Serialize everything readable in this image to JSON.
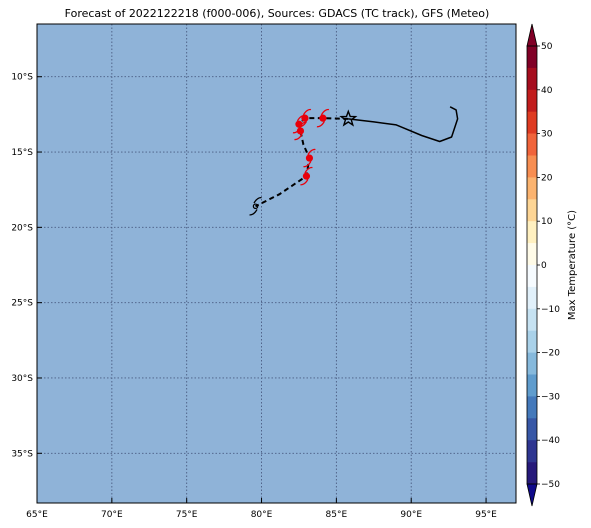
{
  "title": "Forecast of 2022122218 (f000-006), Sources: GDACS (TC track), GFS (Meteo)",
  "map": {
    "ocean_color": "#8fb3d8",
    "grid": true,
    "lon_range": [
      65,
      97
    ],
    "lat_range": [
      -38.3,
      -6.5
    ],
    "lon_ticks": [
      {
        "value": 65,
        "label": "65°E"
      },
      {
        "value": 70,
        "label": "70°E"
      },
      {
        "value": 75,
        "label": "75°E"
      },
      {
        "value": 80,
        "label": "80°E"
      },
      {
        "value": 85,
        "label": "85°E"
      },
      {
        "value": 90,
        "label": "90°E"
      },
      {
        "value": 95,
        "label": "95°E"
      }
    ],
    "lat_ticks": [
      {
        "value": -10,
        "label": "10°S"
      },
      {
        "value": -15,
        "label": "15°S"
      },
      {
        "value": -20,
        "label": "20°S"
      },
      {
        "value": -25,
        "label": "25°S"
      },
      {
        "value": -30,
        "label": "30°S"
      },
      {
        "value": -35,
        "label": "35°S"
      }
    ]
  },
  "track": {
    "past": [
      [
        92.6,
        -12.0
      ],
      [
        93.0,
        -12.2
      ],
      [
        93.1,
        -12.8
      ],
      [
        92.7,
        -14.0
      ],
      [
        91.9,
        -14.3
      ],
      [
        90.7,
        -13.9
      ],
      [
        89.0,
        -13.2
      ],
      [
        87.5,
        -13.0
      ],
      [
        85.8,
        -12.8
      ]
    ],
    "forecast": [
      [
        85.8,
        -12.8
      ],
      [
        84.1,
        -12.75
      ],
      [
        82.9,
        -12.75
      ],
      [
        82.5,
        -13.15
      ],
      [
        82.6,
        -13.6
      ],
      [
        82.8,
        -14.5
      ],
      [
        83.2,
        -15.4
      ],
      [
        83.0,
        -16.6
      ],
      [
        81.2,
        -17.8
      ],
      [
        79.6,
        -18.6
      ]
    ],
    "current_position": [
      85.8,
      -12.8
    ],
    "cyclone_symbols": [
      {
        "pos": [
          84.1,
          -12.75
        ],
        "color": "#e8000b"
      },
      {
        "pos": [
          82.9,
          -12.75
        ],
        "color": "#e8000b"
      },
      {
        "pos": [
          82.5,
          -13.15
        ],
        "color": "#e8000b"
      },
      {
        "pos": [
          82.6,
          -13.6
        ],
        "color": "#e8000b"
      },
      {
        "pos": [
          83.2,
          -15.4
        ],
        "color": "#e8000b"
      },
      {
        "pos": [
          83.0,
          -16.6
        ],
        "color": "#e8000b"
      },
      {
        "pos": [
          79.6,
          -18.6
        ],
        "color": "#000000"
      }
    ]
  },
  "colorbar": {
    "label": "Max Temperature (°C)",
    "ticks": [
      "50",
      "40",
      "30",
      "20",
      "10",
      "0",
      "−10",
      "−20",
      "−30",
      "−40",
      "−50"
    ],
    "colors": [
      "#b2182b",
      "#d6604d",
      "#f4a582",
      "#fddbc7",
      "#ffffff",
      "#d1e5f0",
      "#92c5de",
      "#4393c3",
      "#2166ac",
      "#3a4a9f"
    ],
    "segments": [
      "#800026",
      "#a50d1e",
      "#c11d1d",
      "#de3b22",
      "#f0643b",
      "#f78e52",
      "#fbb36f",
      "#fdd595",
      "#fff0c0",
      "#fffbe8",
      "#f6fbff",
      "#e1f0fa",
      "#c6e2f2",
      "#a9d1e9",
      "#86b9dc",
      "#5f9ccd",
      "#4479bb",
      "#3757a6",
      "#2e3590",
      "#26197a"
    ],
    "extend_top_color": "#800026",
    "extend_bottom_color": "#0f0a8a"
  }
}
